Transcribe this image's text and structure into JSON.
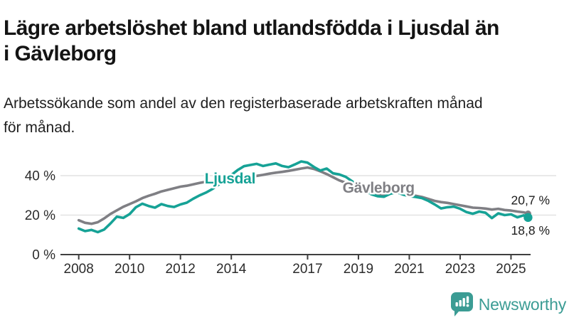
{
  "header": {
    "title": "Lägre arbetslöshet bland utlandsfödda i Ljusdal än\ni Gävleborg",
    "subtitle": "Arbetssökande som andel av den registerbaserade arbetskraften månad\nför månad."
  },
  "branding": {
    "name": "Newsworthy",
    "logo_icon": "bar-chart-speech-bubble-icon",
    "color": "#3b9c94"
  },
  "chart_data": {
    "type": "line",
    "x_unit": "decimal_year",
    "xlim": [
      2007.7,
      2026.2
    ],
    "ylim": [
      0,
      50
    ],
    "grid": "horizontal",
    "axis_color": "#3f3f3f",
    "grid_color": "#e2e2e2",
    "y_ticks": [
      {
        "value": 0,
        "label": "0 %"
      },
      {
        "value": 20,
        "label": "20 %"
      },
      {
        "value": 40,
        "label": "40 %"
      }
    ],
    "x_ticks": [
      {
        "value": 2008,
        "label": "2008"
      },
      {
        "value": 2010,
        "label": "2010"
      },
      {
        "value": 2012,
        "label": "2012"
      },
      {
        "value": 2014,
        "label": "2014"
      },
      {
        "value": 2017,
        "label": "2017"
      },
      {
        "value": 2019,
        "label": "2019"
      },
      {
        "value": 2021,
        "label": "2021"
      },
      {
        "value": 2023,
        "label": "2023"
      },
      {
        "value": 2025,
        "label": "2025"
      }
    ],
    "series": [
      {
        "name": "Gävleborg",
        "color": "#7f7f84",
        "end_label": "20,7 %",
        "end_value": 20.7,
        "label_at": {
          "x": 2019.79,
          "y": 31.3
        },
        "points": [
          [
            2008.0,
            17.4
          ],
          [
            2008.25,
            16.1
          ],
          [
            2008.5,
            15.6
          ],
          [
            2008.75,
            16.4
          ],
          [
            2009.0,
            18.3
          ],
          [
            2009.25,
            20.6
          ],
          [
            2009.5,
            22.4
          ],
          [
            2009.75,
            24.2
          ],
          [
            2010.0,
            25.6
          ],
          [
            2010.25,
            27.0
          ],
          [
            2010.5,
            28.6
          ],
          [
            2010.75,
            29.8
          ],
          [
            2011.0,
            30.8
          ],
          [
            2011.25,
            32.0
          ],
          [
            2011.5,
            32.8
          ],
          [
            2011.75,
            33.6
          ],
          [
            2012.0,
            34.4
          ],
          [
            2012.25,
            34.9
          ],
          [
            2012.5,
            35.6
          ],
          [
            2012.75,
            36.3
          ],
          [
            2013.0,
            36.9
          ],
          [
            2013.25,
            37.2
          ],
          [
            2013.5,
            37.1
          ],
          [
            2013.75,
            37.7
          ],
          [
            2014.0,
            38.2
          ],
          [
            2014.25,
            38.6
          ],
          [
            2014.5,
            39.1
          ],
          [
            2014.75,
            39.4
          ],
          [
            2015.0,
            39.9
          ],
          [
            2015.25,
            40.4
          ],
          [
            2015.5,
            41.0
          ],
          [
            2015.75,
            41.5
          ],
          [
            2016.0,
            41.9
          ],
          [
            2016.25,
            42.4
          ],
          [
            2016.5,
            43.0
          ],
          [
            2016.75,
            43.6
          ],
          [
            2017.0,
            44.1
          ],
          [
            2017.25,
            43.4
          ],
          [
            2017.5,
            42.2
          ],
          [
            2017.75,
            40.8
          ],
          [
            2018.0,
            39.2
          ],
          [
            2018.25,
            37.6
          ],
          [
            2018.5,
            36.4
          ],
          [
            2018.75,
            35.2
          ],
          [
            2019.0,
            33.8
          ],
          [
            2019.25,
            32.2
          ],
          [
            2019.5,
            31.0
          ],
          [
            2019.75,
            30.2
          ],
          [
            2020.0,
            30.0
          ],
          [
            2020.25,
            31.4
          ],
          [
            2020.5,
            32.2
          ],
          [
            2020.75,
            31.2
          ],
          [
            2021.0,
            30.4
          ],
          [
            2021.25,
            29.8
          ],
          [
            2021.5,
            29.2
          ],
          [
            2021.75,
            28.2
          ],
          [
            2022.0,
            27.2
          ],
          [
            2022.25,
            26.6
          ],
          [
            2022.5,
            26.2
          ],
          [
            2022.75,
            25.6
          ],
          [
            2023.0,
            25.0
          ],
          [
            2023.25,
            24.4
          ],
          [
            2023.5,
            23.8
          ],
          [
            2023.75,
            23.6
          ],
          [
            2024.0,
            23.3
          ],
          [
            2024.25,
            22.8
          ],
          [
            2024.5,
            23.2
          ],
          [
            2024.75,
            22.6
          ],
          [
            2025.0,
            22.3
          ],
          [
            2025.25,
            21.8
          ],
          [
            2025.5,
            21.4
          ],
          [
            2025.67,
            20.7
          ]
        ]
      },
      {
        "name": "Ljusdal",
        "color": "#16a296",
        "end_label": "18,8 %",
        "end_value": 18.8,
        "label_at": {
          "x": 2013.95,
          "y": 36.0
        },
        "points": [
          [
            2008.0,
            13.2
          ],
          [
            2008.25,
            11.9
          ],
          [
            2008.5,
            12.5
          ],
          [
            2008.75,
            11.4
          ],
          [
            2009.0,
            12.7
          ],
          [
            2009.25,
            15.8
          ],
          [
            2009.5,
            19.2
          ],
          [
            2009.75,
            18.6
          ],
          [
            2010.0,
            20.5
          ],
          [
            2010.25,
            24.0
          ],
          [
            2010.5,
            25.8
          ],
          [
            2010.75,
            24.6
          ],
          [
            2011.0,
            23.8
          ],
          [
            2011.25,
            25.6
          ],
          [
            2011.5,
            24.6
          ],
          [
            2011.75,
            24.1
          ],
          [
            2012.0,
            25.4
          ],
          [
            2012.25,
            26.3
          ],
          [
            2012.5,
            28.3
          ],
          [
            2012.75,
            30.0
          ],
          [
            2013.0,
            31.4
          ],
          [
            2013.25,
            33.2
          ],
          [
            2013.5,
            35.4
          ],
          [
            2013.75,
            37.8
          ],
          [
            2014.0,
            40.3
          ],
          [
            2014.25,
            42.8
          ],
          [
            2014.5,
            44.8
          ],
          [
            2014.75,
            45.4
          ],
          [
            2015.0,
            46.0
          ],
          [
            2015.25,
            44.9
          ],
          [
            2015.5,
            45.6
          ],
          [
            2015.75,
            46.2
          ],
          [
            2016.0,
            44.9
          ],
          [
            2016.25,
            44.3
          ],
          [
            2016.5,
            45.7
          ],
          [
            2016.75,
            47.2
          ],
          [
            2017.0,
            46.6
          ],
          [
            2017.25,
            44.4
          ],
          [
            2017.5,
            42.6
          ],
          [
            2017.75,
            43.6
          ],
          [
            2018.0,
            41.2
          ],
          [
            2018.25,
            40.6
          ],
          [
            2018.5,
            39.4
          ],
          [
            2018.75,
            37.2
          ],
          [
            2019.0,
            34.8
          ],
          [
            2019.25,
            32.4
          ],
          [
            2019.5,
            30.6
          ],
          [
            2019.75,
            29.6
          ],
          [
            2020.0,
            29.3
          ],
          [
            2020.25,
            30.8
          ],
          [
            2020.5,
            31.6
          ],
          [
            2020.75,
            30.4
          ],
          [
            2021.0,
            29.6
          ],
          [
            2021.25,
            29.2
          ],
          [
            2021.5,
            28.6
          ],
          [
            2021.75,
            27.2
          ],
          [
            2022.0,
            25.4
          ],
          [
            2022.25,
            23.4
          ],
          [
            2022.5,
            24.0
          ],
          [
            2022.75,
            24.3
          ],
          [
            2023.0,
            23.2
          ],
          [
            2023.25,
            21.5
          ],
          [
            2023.5,
            20.7
          ],
          [
            2023.75,
            21.8
          ],
          [
            2024.0,
            21.2
          ],
          [
            2024.25,
            18.5
          ],
          [
            2024.5,
            20.9
          ],
          [
            2024.75,
            20.0
          ],
          [
            2025.0,
            20.4
          ],
          [
            2025.25,
            18.9
          ],
          [
            2025.5,
            19.9
          ],
          [
            2025.67,
            18.8
          ]
        ]
      }
    ]
  }
}
